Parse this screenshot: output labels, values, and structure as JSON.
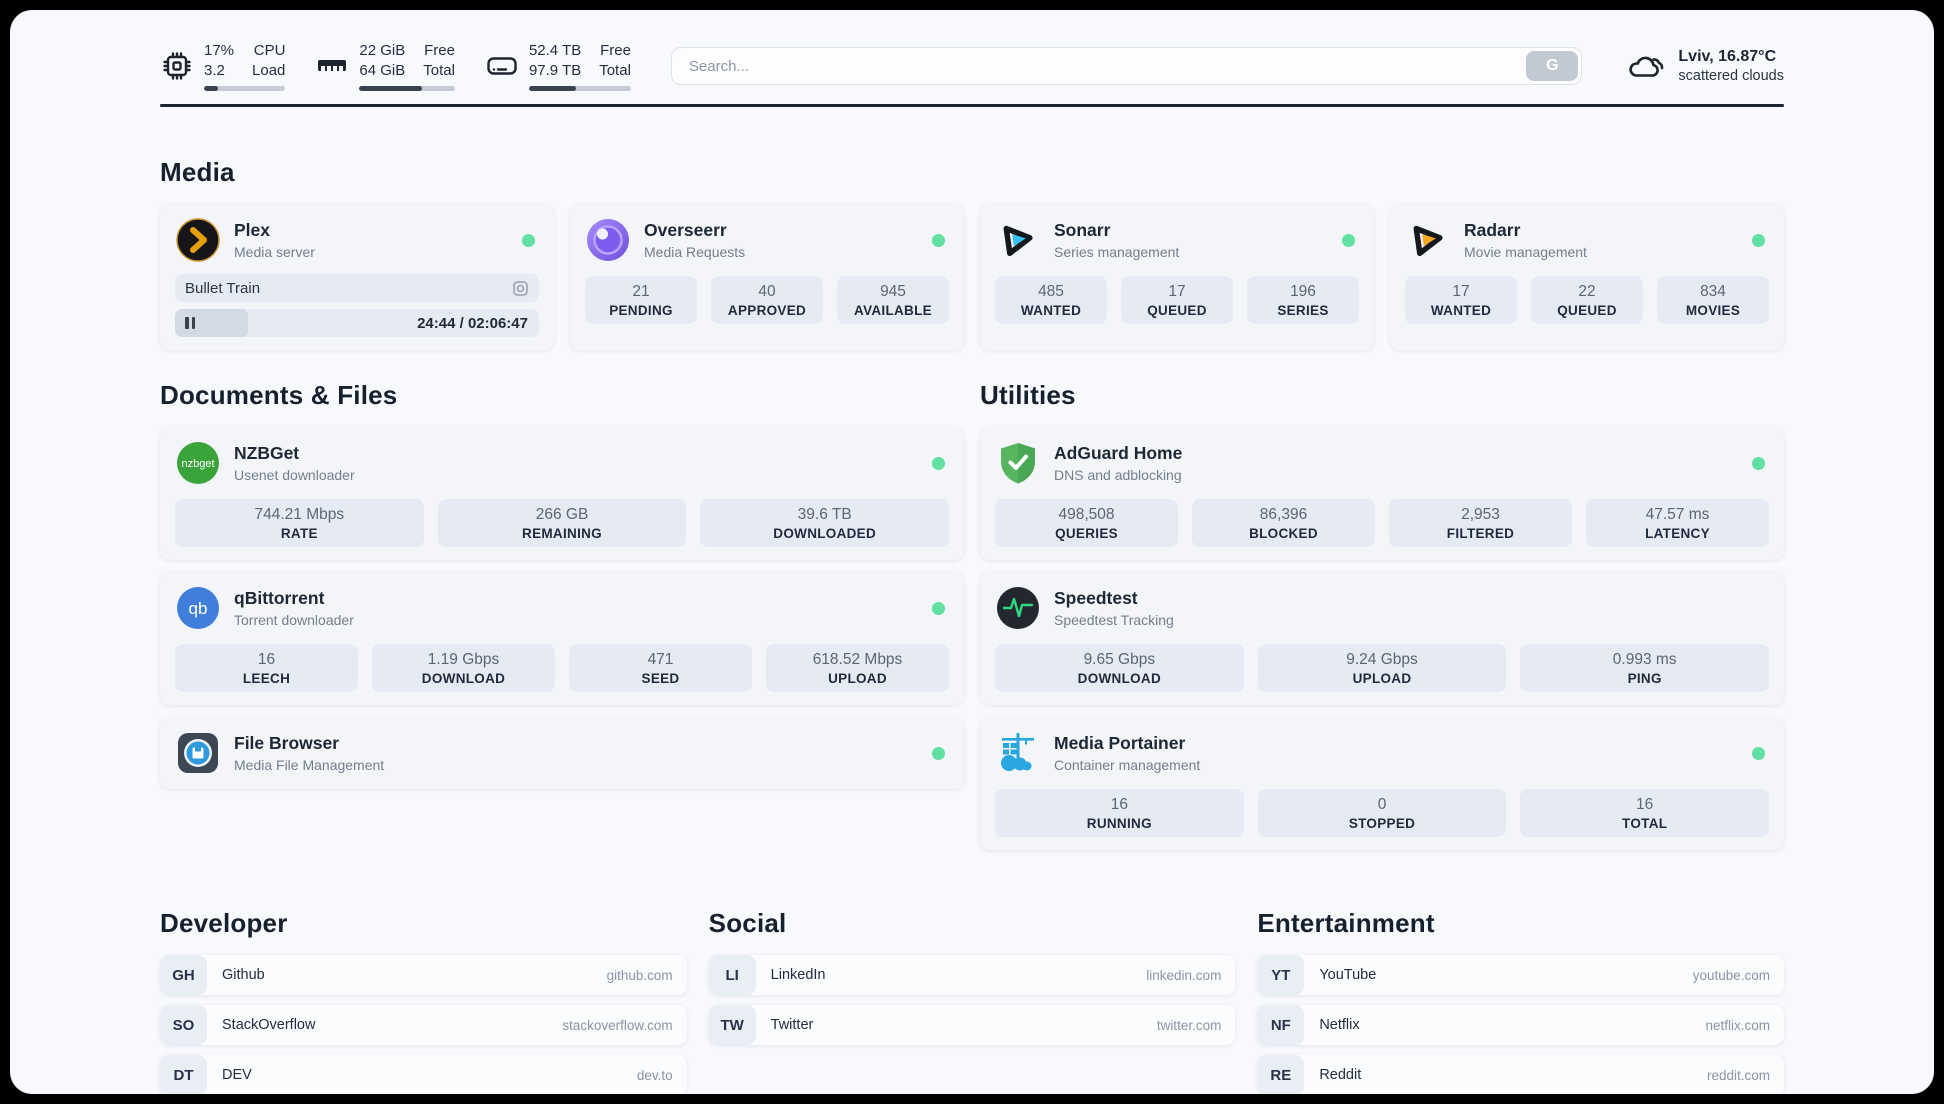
{
  "topbar": {
    "stats": [
      {
        "icon": "cpu-icon",
        "top_value": "17%",
        "bottom_value": "3.2",
        "top_label": "CPU",
        "bottom_label": "Load",
        "progress_pct": 17
      },
      {
        "icon": "ram-icon",
        "top_value": "22 GiB",
        "bottom_value": "64 GiB",
        "top_label": "Free",
        "bottom_label": "Total",
        "progress_pct": 66
      },
      {
        "icon": "disk-icon",
        "top_value": "52.4 TB",
        "bottom_value": "97.9 TB",
        "top_label": "Free",
        "bottom_label": "Total",
        "progress_pct": 46
      }
    ],
    "search": {
      "placeholder": "Search...",
      "button_label": "G"
    },
    "weather": {
      "location": "Lviv, 16.87°C",
      "condition": "scattered clouds"
    }
  },
  "media": {
    "heading": "Media",
    "plex": {
      "name": "Plex",
      "subtitle": "Media server",
      "status": "online",
      "now_playing": "Bullet Train",
      "time_display": "24:44 / 02:06:47",
      "progress_pct": 20
    },
    "overseerr": {
      "name": "Overseerr",
      "subtitle": "Media Requests",
      "status": "online",
      "stats": [
        {
          "value": "21",
          "label": "PENDING"
        },
        {
          "value": "40",
          "label": "APPROVED"
        },
        {
          "value": "945",
          "label": "AVAILABLE"
        }
      ]
    },
    "sonarr": {
      "name": "Sonarr",
      "subtitle": "Series management",
      "status": "online",
      "stats": [
        {
          "value": "485",
          "label": "WANTED"
        },
        {
          "value": "17",
          "label": "QUEUED"
        },
        {
          "value": "196",
          "label": "SERIES"
        }
      ]
    },
    "radarr": {
      "name": "Radarr",
      "subtitle": "Movie management",
      "status": "online",
      "stats": [
        {
          "value": "17",
          "label": "WANTED"
        },
        {
          "value": "22",
          "label": "QUEUED"
        },
        {
          "value": "834",
          "label": "MOVIES"
        }
      ]
    }
  },
  "documents": {
    "heading": "Documents & Files",
    "nzbget": {
      "name": "NZBGet",
      "subtitle": "Usenet downloader",
      "icon_text": "nzbget",
      "status": "online",
      "stats": [
        {
          "value": "744.21 Mbps",
          "label": "RATE"
        },
        {
          "value": "266 GB",
          "label": "REMAINING"
        },
        {
          "value": "39.6 TB",
          "label": "DOWNLOADED"
        }
      ]
    },
    "qbittorrent": {
      "name": "qBittorrent",
      "subtitle": "Torrent downloader",
      "icon_text": "qb",
      "status": "online",
      "stats": [
        {
          "value": "16",
          "label": "LEECH"
        },
        {
          "value": "1.19 Gbps",
          "label": "DOWNLOAD"
        },
        {
          "value": "471",
          "label": "SEED"
        },
        {
          "value": "618.52 Mbps",
          "label": "UPLOAD"
        }
      ]
    },
    "filebrowser": {
      "name": "File Browser",
      "subtitle": "Media File Management",
      "status": "online"
    }
  },
  "utilities": {
    "heading": "Utilities",
    "adguard": {
      "name": "AdGuard Home",
      "subtitle": "DNS and adblocking",
      "status": "online",
      "stats": [
        {
          "value": "498,508",
          "label": "QUERIES"
        },
        {
          "value": "86,396",
          "label": "BLOCKED"
        },
        {
          "value": "2,953",
          "label": "FILTERED"
        },
        {
          "value": "47.57 ms",
          "label": "LATENCY"
        }
      ]
    },
    "speedtest": {
      "name": "Speedtest",
      "subtitle": "Speedtest Tracking",
      "status": "online",
      "stats": [
        {
          "value": "9.65 Gbps",
          "label": "DOWNLOAD"
        },
        {
          "value": "9.24 Gbps",
          "label": "UPLOAD"
        },
        {
          "value": "0.993 ms",
          "label": "PING"
        }
      ]
    },
    "portainer": {
      "name": "Media Portainer",
      "subtitle": "Container management",
      "status": "online",
      "stats": [
        {
          "value": "16",
          "label": "RUNNING"
        },
        {
          "value": "0",
          "label": "STOPPED"
        },
        {
          "value": "16",
          "label": "TOTAL"
        }
      ]
    }
  },
  "bookmarks": [
    {
      "heading": "Developer",
      "links": [
        {
          "abbr": "GH",
          "name": "Github",
          "url": "github.com"
        },
        {
          "abbr": "SO",
          "name": "StackOverflow",
          "url": "stackoverflow.com"
        },
        {
          "abbr": "DT",
          "name": "DEV",
          "url": "dev.to"
        }
      ]
    },
    {
      "heading": "Social",
      "links": [
        {
          "abbr": "LI",
          "name": "LinkedIn",
          "url": "linkedin.com"
        },
        {
          "abbr": "TW",
          "name": "Twitter",
          "url": "twitter.com"
        }
      ]
    },
    {
      "heading": "Entertainment",
      "links": [
        {
          "abbr": "YT",
          "name": "YouTube",
          "url": "youtube.com"
        },
        {
          "abbr": "NF",
          "name": "Netflix",
          "url": "netflix.com"
        },
        {
          "abbr": "RE",
          "name": "Reddit",
          "url": "reddit.com"
        }
      ]
    }
  ],
  "colors": {
    "status_online": "#62dfa2",
    "page_bg": "#f8f9fd",
    "card_bg": "#f3f5f9",
    "stat_box_bg": "#e6eaf2",
    "plex_gold": "#e5a00d",
    "sonarr_cyan": "#35c5f4",
    "radarr_amber": "#f5a623",
    "nzbget_green": "#3aa33a",
    "qbittorrent_blue": "#3f7edb",
    "adguard_green": "#57b560",
    "speedtest_pulse": "#2fd980",
    "portainer_blue": "#29a8e0"
  }
}
